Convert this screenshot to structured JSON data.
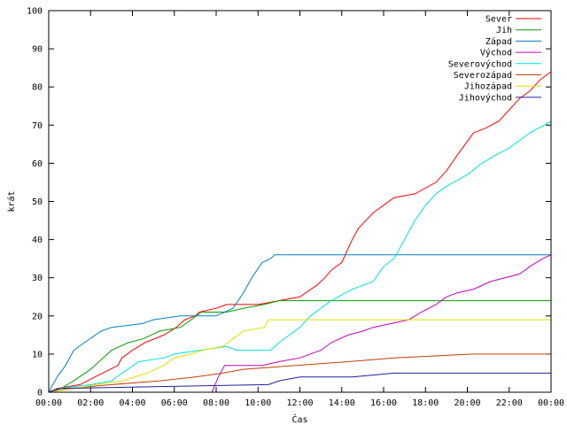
{
  "chart_data": {
    "type": "line",
    "xlabel": "Čas",
    "ylabel": "krát",
    "ylim": [
      0,
      100
    ],
    "yticks": [
      0,
      10,
      20,
      30,
      40,
      50,
      60,
      70,
      80,
      90,
      100
    ],
    "xlim_hours": [
      0,
      24
    ],
    "xticks": [
      {
        "h": 0,
        "label": "00:00"
      },
      {
        "h": 2,
        "label": "02:00"
      },
      {
        "h": 4,
        "label": "04:00"
      },
      {
        "h": 6,
        "label": "06:00"
      },
      {
        "h": 8,
        "label": "08:00"
      },
      {
        "h": 10,
        "label": "10:00"
      },
      {
        "h": 12,
        "label": "12:00"
      },
      {
        "h": 14,
        "label": "14:00"
      },
      {
        "h": 16,
        "label": "16:00"
      },
      {
        "h": 18,
        "label": "18:00"
      },
      {
        "h": 20,
        "label": "20:00"
      },
      {
        "h": 22,
        "label": "22:00"
      },
      {
        "h": 24,
        "label": "00:00"
      }
    ],
    "grid": false,
    "legend": "top-right",
    "series": [
      {
        "name": "Sever",
        "color": "#ff0000",
        "points": [
          [
            0,
            0
          ],
          [
            0.4,
            1
          ],
          [
            1.5,
            2
          ],
          [
            2.2,
            4
          ],
          [
            3.3,
            7
          ],
          [
            3.5,
            9
          ],
          [
            4,
            11
          ],
          [
            4.6,
            13
          ],
          [
            5.5,
            15
          ],
          [
            6.1,
            17
          ],
          [
            6.5,
            19
          ],
          [
            7,
            20
          ],
          [
            7.2,
            21
          ],
          [
            8,
            22
          ],
          [
            8.5,
            23
          ],
          [
            10,
            23
          ],
          [
            11,
            24
          ],
          [
            12,
            25
          ],
          [
            12.8,
            28
          ],
          [
            13.2,
            30
          ],
          [
            13.5,
            32
          ],
          [
            14,
            34
          ],
          [
            14.5,
            40
          ],
          [
            14.8,
            43
          ],
          [
            15.5,
            47
          ],
          [
            16,
            49
          ],
          [
            16.5,
            51
          ],
          [
            17.5,
            52
          ],
          [
            18.5,
            55
          ],
          [
            19,
            58
          ],
          [
            19.5,
            62
          ],
          [
            20.3,
            68
          ],
          [
            20.8,
            69
          ],
          [
            21.5,
            71
          ],
          [
            22,
            74
          ],
          [
            22.5,
            77
          ],
          [
            23,
            79
          ],
          [
            23.5,
            82
          ],
          [
            24,
            84
          ]
        ]
      },
      {
        "name": "Jih",
        "color": "#00a000",
        "points": [
          [
            0,
            0
          ],
          [
            0.6,
            1
          ],
          [
            1.2,
            3
          ],
          [
            2,
            6
          ],
          [
            2.6,
            9
          ],
          [
            3,
            11
          ],
          [
            3.8,
            13
          ],
          [
            4.5,
            14
          ],
          [
            5.3,
            16
          ],
          [
            6.3,
            17
          ],
          [
            6.8,
            19
          ],
          [
            7.3,
            21
          ],
          [
            8.5,
            21
          ],
          [
            9.3,
            22
          ],
          [
            10.3,
            23
          ],
          [
            11,
            24
          ],
          [
            24,
            24
          ]
        ]
      },
      {
        "name": "Západ",
        "color": "#0080c0",
        "points": [
          [
            0,
            0
          ],
          [
            0.4,
            4
          ],
          [
            0.8,
            7
          ],
          [
            1.2,
            11
          ],
          [
            1.7,
            13
          ],
          [
            2.5,
            16
          ],
          [
            3,
            17
          ],
          [
            4.5,
            18
          ],
          [
            5,
            19
          ],
          [
            6.3,
            20
          ],
          [
            8,
            20
          ],
          [
            8.8,
            22
          ],
          [
            9.3,
            26
          ],
          [
            9.7,
            30
          ],
          [
            10.2,
            34
          ],
          [
            10.6,
            35
          ],
          [
            10.8,
            36
          ],
          [
            24,
            36
          ]
        ]
      },
      {
        "name": "Východ",
        "color": "#c000c0",
        "points": [
          [
            0,
            0
          ],
          [
            7.8,
            0
          ],
          [
            8.1,
            4
          ],
          [
            8.4,
            7
          ],
          [
            10.2,
            7
          ],
          [
            11,
            8
          ],
          [
            12,
            9
          ],
          [
            13,
            11
          ],
          [
            13.5,
            13
          ],
          [
            14.3,
            15
          ],
          [
            15,
            16
          ],
          [
            15.5,
            17
          ],
          [
            17.2,
            19
          ],
          [
            17.8,
            21
          ],
          [
            18.5,
            23
          ],
          [
            19,
            25
          ],
          [
            19.5,
            26
          ],
          [
            20.3,
            27
          ],
          [
            21.1,
            29
          ],
          [
            22.5,
            31
          ],
          [
            23,
            33
          ],
          [
            23.6,
            35
          ],
          [
            24,
            36
          ]
        ]
      },
      {
        "name": "Severovýchod",
        "color": "#00e0e0",
        "points": [
          [
            0,
            0
          ],
          [
            0.5,
            1
          ],
          [
            2,
            2
          ],
          [
            3,
            3
          ],
          [
            3.5,
            5
          ],
          [
            4.3,
            8
          ],
          [
            5.5,
            9
          ],
          [
            6,
            10
          ],
          [
            7.2,
            11
          ],
          [
            8.5,
            12
          ],
          [
            9,
            11
          ],
          [
            10.6,
            11
          ],
          [
            11,
            13
          ],
          [
            11.5,
            15
          ],
          [
            12,
            17
          ],
          [
            12.5,
            20
          ],
          [
            13.5,
            24
          ],
          [
            14.5,
            27
          ],
          [
            15.5,
            29
          ],
          [
            16,
            33
          ],
          [
            16.5,
            35
          ],
          [
            17,
            40
          ],
          [
            17.5,
            45
          ],
          [
            18,
            49
          ],
          [
            18.5,
            52
          ],
          [
            19,
            54
          ],
          [
            20,
            57
          ],
          [
            20.7,
            60
          ],
          [
            21.3,
            62
          ],
          [
            22,
            64
          ],
          [
            22.5,
            66
          ],
          [
            23,
            68
          ],
          [
            24,
            71
          ]
        ]
      },
      {
        "name": "Severozápad",
        "color": "#c04000",
        "points": [
          [
            0,
            0
          ],
          [
            1,
            1
          ],
          [
            3,
            2
          ],
          [
            5.3,
            3
          ],
          [
            7,
            4
          ],
          [
            8.3,
            5
          ],
          [
            9.3,
            6
          ],
          [
            11.8,
            7
          ],
          [
            14.3,
            8
          ],
          [
            16.5,
            9
          ],
          [
            20.3,
            10
          ],
          [
            24,
            10
          ]
        ]
      },
      {
        "name": "Jihozápad",
        "color": "#e0e000",
        "points": [
          [
            0,
            0
          ],
          [
            1.2,
            1
          ],
          [
            2.3,
            2
          ],
          [
            3.5,
            3
          ],
          [
            4.7,
            5
          ],
          [
            5.5,
            7
          ],
          [
            6,
            9
          ],
          [
            6.8,
            10
          ],
          [
            7.3,
            11
          ],
          [
            8.3,
            12
          ],
          [
            8.8,
            14
          ],
          [
            9.3,
            16
          ],
          [
            10.3,
            17
          ],
          [
            10.5,
            19
          ],
          [
            24,
            19
          ]
        ]
      },
      {
        "name": "Jihovýchod",
        "color": "#2020a0",
        "points": [
          [
            0,
            0
          ],
          [
            0.5,
            1
          ],
          [
            10.5,
            2
          ],
          [
            11,
            3
          ],
          [
            12,
            4
          ],
          [
            14.5,
            4
          ],
          [
            16.5,
            5
          ],
          [
            24,
            5
          ]
        ]
      }
    ]
  }
}
